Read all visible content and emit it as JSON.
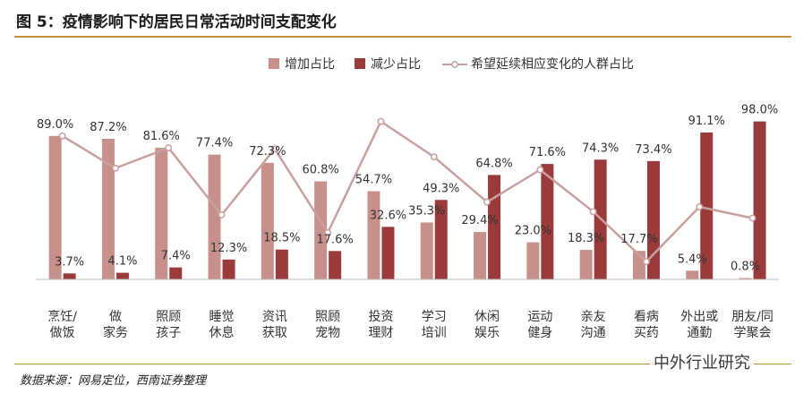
{
  "figure": {
    "title": "图 5：疫情影响下的居民日常活动时间支配变化",
    "source": "数据来源：网易定位，西南证券整理",
    "watermark": "中外行业研究"
  },
  "colors": {
    "increase": "#c8908a",
    "decrease": "#9b3a3a",
    "line": "#c9a0a0",
    "rule": "#c8923a"
  },
  "chart_data": {
    "type": "bar",
    "categories": [
      "烹饪/\n做饭",
      "做\n家务",
      "照顾\n孩子",
      "睡觉\n休息",
      "资讯\n获取",
      "照顾\n宠物",
      "投资\n理财",
      "学习\n培训",
      "休闲\n娱乐",
      "运动\n健身",
      "亲友\n沟通",
      "看病\n买药",
      "外出或\n通勤",
      "朋友/同\n学聚会"
    ],
    "series": [
      {
        "name": "增加占比",
        "values": [
          89.0,
          87.2,
          81.6,
          77.4,
          72.3,
          60.8,
          54.7,
          35.3,
          29.4,
          23.0,
          18.3,
          17.7,
          5.4,
          0.8
        ],
        "labels": [
          "89.0%",
          "87.2%",
          "81.6%",
          "77.4%",
          "72.3%",
          "60.8%",
          "54.7%",
          "35.3%",
          "29.4%",
          "23.0%",
          "18.3%",
          "17.7%",
          "5.4%",
          "0.8%"
        ]
      },
      {
        "name": "减少占比",
        "values": [
          3.7,
          4.1,
          7.4,
          12.3,
          18.5,
          17.6,
          32.6,
          49.3,
          64.8,
          71.6,
          74.3,
          73.4,
          91.1,
          98.0
        ],
        "labels": [
          "3.7%",
          "4.1%",
          "7.4%",
          "12.3%",
          "18.5%",
          "17.6%",
          "32.6%",
          "49.3%",
          "64.8%",
          "71.6%",
          "74.3%",
          "73.4%",
          "91.1%",
          "98.0%"
        ]
      },
      {
        "name": "希望延续相应变化的人群占比",
        "type": "line",
        "values": [
          89.0,
          69,
          81.6,
          40,
          81,
          29,
          98,
          76,
          48,
          68,
          42,
          11,
          45,
          38
        ]
      }
    ],
    "ylim": [
      0,
      100
    ],
    "grid": false,
    "legend_position": "top"
  }
}
